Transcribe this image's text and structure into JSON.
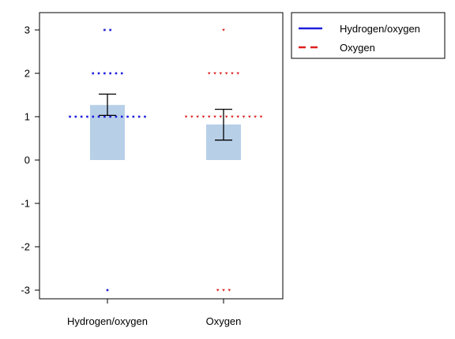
{
  "chart_data": {
    "type": "bar",
    "title": "",
    "xlabel": "",
    "ylabel": "",
    "categories": [
      "Hydrogen/oxygen",
      "Oxygen"
    ],
    "ylim": [
      -3.2,
      3.4
    ],
    "yticks": [
      3,
      2,
      1,
      0,
      -1,
      -2,
      -3
    ],
    "grid": false,
    "legend_position": "top-right, outside plot",
    "bars": {
      "values": [
        1.27,
        0.82
      ],
      "color": "#b8cfe8"
    },
    "error_bars": {
      "upper": [
        1.52,
        1.17
      ],
      "lower": [
        1.03,
        0.46
      ]
    },
    "series": [
      {
        "name": "Hydrogen/oxygen",
        "category": "Hydrogen/oxygen",
        "color": "#1f1fdd",
        "legend_line": "solid",
        "marker": "square",
        "points": [
          {
            "y": 3,
            "count": 2
          },
          {
            "y": 2,
            "count": 6
          },
          {
            "y": 1,
            "count": 14
          },
          {
            "y": -3,
            "count": 1
          }
        ]
      },
      {
        "name": "Oxygen",
        "category": "Oxygen",
        "color": "#dd1f1f",
        "legend_line": "dashed",
        "marker": "triangle-down",
        "points": [
          {
            "y": 3,
            "count": 1
          },
          {
            "y": 2,
            "count": 6
          },
          {
            "y": 1,
            "count": 14
          },
          {
            "y": -3,
            "count": 3
          }
        ]
      }
    ]
  }
}
